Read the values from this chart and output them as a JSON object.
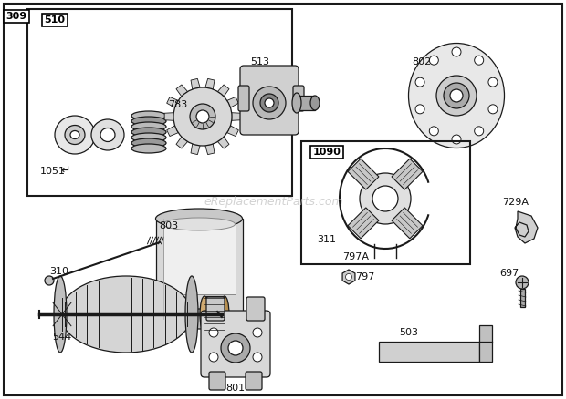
{
  "background_color": "#ffffff",
  "line_color": "#1a1a1a",
  "watermark": "eReplacementParts.com",
  "figsize": [
    6.2,
    4.38
  ],
  "dpi": 100
}
